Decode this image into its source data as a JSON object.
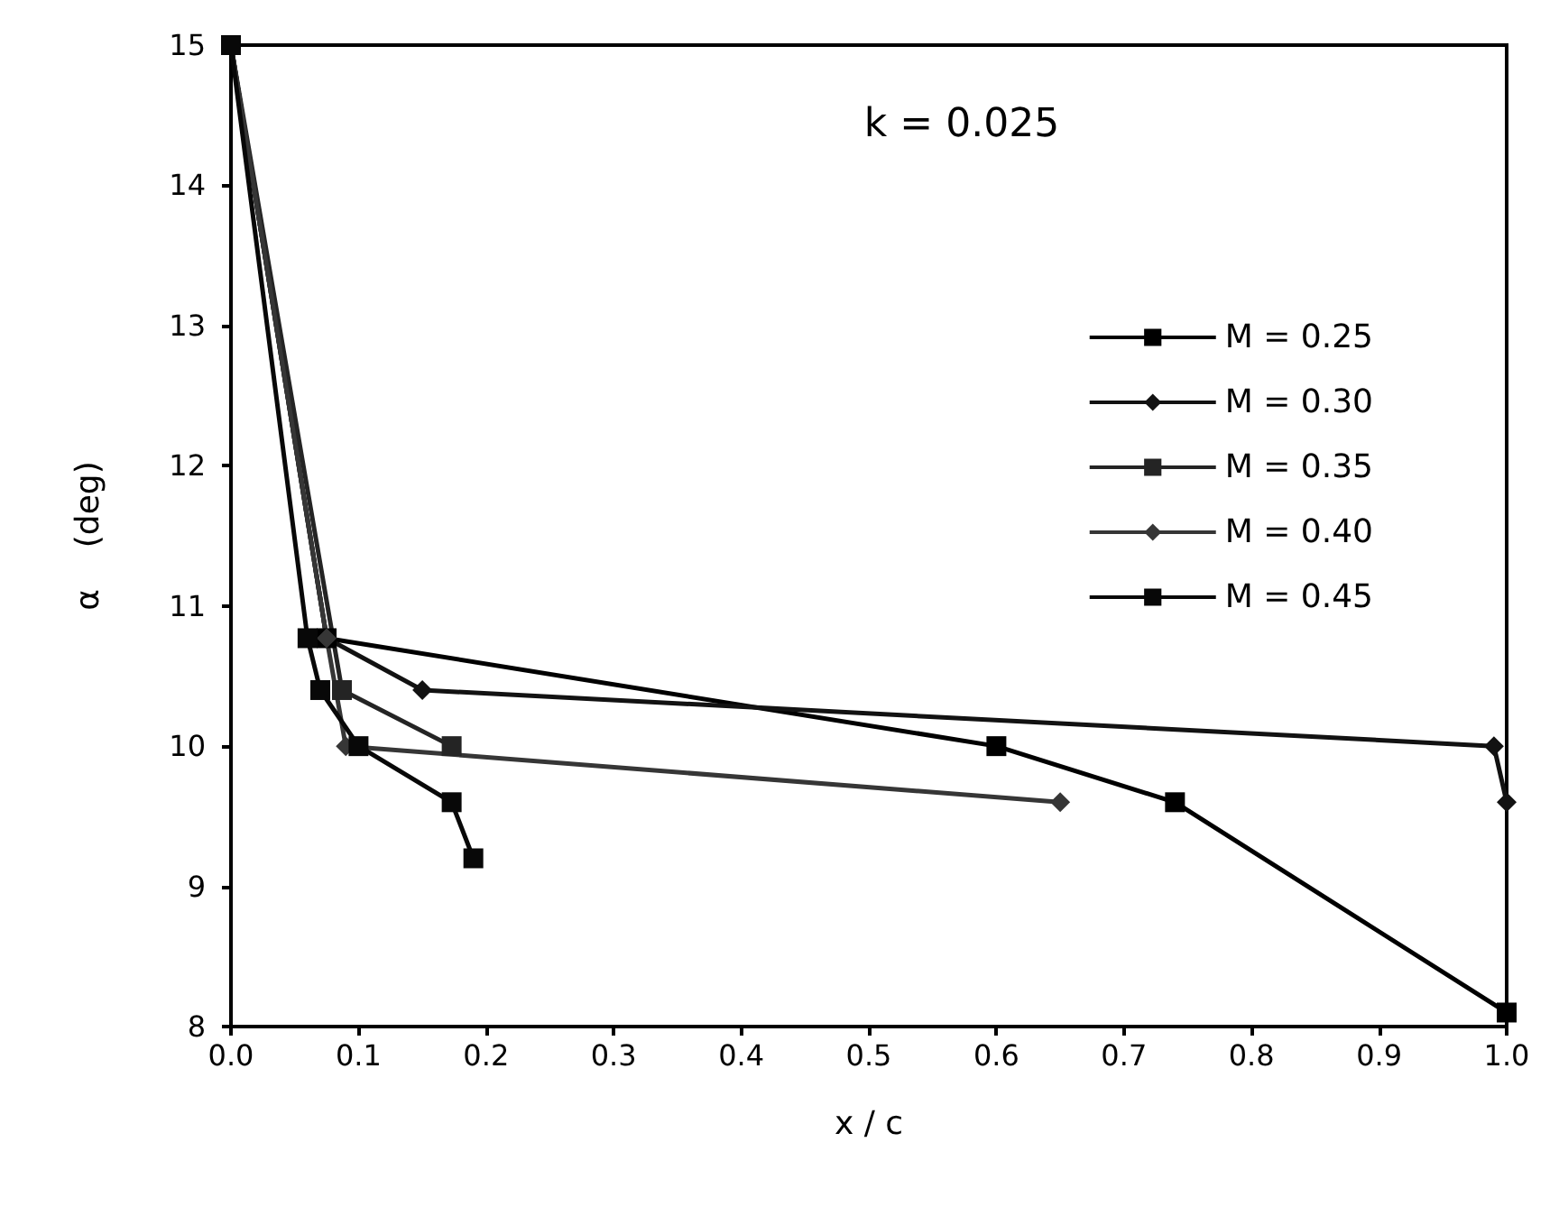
{
  "chart_data": {
    "type": "line",
    "title": "k = 0.025",
    "xlabel": "x / c",
    "ylabel": "α    (deg)",
    "xlim": [
      0,
      1
    ],
    "xticks": [
      {
        "value": 0,
        "label": "0.0"
      },
      {
        "value": 0.1,
        "label": "0.1"
      },
      {
        "value": 0.2,
        "label": "0.2"
      },
      {
        "value": 0.3,
        "label": "0.3"
      },
      {
        "value": 0.4,
        "label": "0.4"
      },
      {
        "value": 0.5,
        "label": "0.5"
      },
      {
        "value": 0.6,
        "label": "0.6"
      },
      {
        "value": 0.7,
        "label": "0.7"
      },
      {
        "value": 0.8,
        "label": "0.8"
      },
      {
        "value": 0.9,
        "label": "0.9"
      },
      {
        "value": 1,
        "label": "1.0"
      }
    ],
    "ylim": [
      8,
      15
    ],
    "yticks": [
      8,
      9,
      10,
      11,
      12,
      13,
      14,
      15
    ],
    "grid": false,
    "legend": "right",
    "line_style": "solid",
    "series": [
      {
        "name": "M = 0.25",
        "color": "#000000",
        "marker": "square",
        "x": [
          0,
          0.075,
          0.6,
          0.74,
          1.0
        ],
        "values": [
          15,
          10.77,
          10,
          9.6,
          8.1
        ]
      },
      {
        "name": "M = 0.30",
        "color": "#121212",
        "marker": "diamond",
        "x": [
          0,
          0.075,
          0.15,
          0.99,
          1.0
        ],
        "values": [
          15,
          10.77,
          10.4,
          10,
          9.6
        ]
      },
      {
        "name": "M = 0.35",
        "color": "#242424",
        "marker": "square",
        "x": [
          0,
          0.087,
          0.173
        ],
        "values": [
          15,
          10.4,
          10
        ]
      },
      {
        "name": "M = 0.40",
        "color": "#363636",
        "marker": "diamond",
        "x": [
          0,
          0.075,
          0.09,
          0.65
        ],
        "values": [
          15,
          10.77,
          10,
          9.6
        ]
      },
      {
        "name": "M = 0.45",
        "color": "#080808",
        "marker": "square",
        "x": [
          0,
          0.06,
          0.07,
          0.1,
          0.173,
          0.19
        ],
        "values": [
          15,
          10.77,
          10.4,
          10,
          9.6,
          9.2
        ]
      }
    ]
  }
}
